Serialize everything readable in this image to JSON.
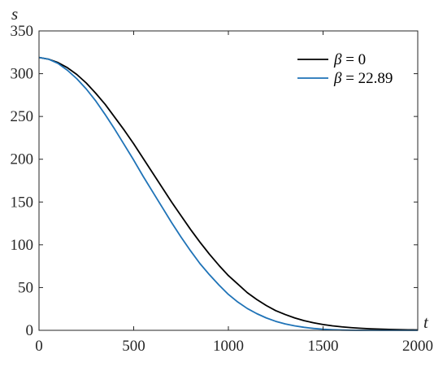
{
  "chart_data": {
    "type": "line",
    "title": "",
    "xlabel": "t",
    "ylabel": "s",
    "xlim": [
      0,
      2000
    ],
    "ylim": [
      0,
      350
    ],
    "xticks": [
      0,
      500,
      1000,
      1500,
      2000
    ],
    "yticks": [
      0,
      50,
      100,
      150,
      200,
      250,
      300,
      350
    ],
    "grid": false,
    "legend_position": "top-right",
    "series": [
      {
        "name": "β = 0",
        "legend_symbol": "β",
        "legend_value": " = 0",
        "color": "#000000",
        "x": [
          0,
          50,
          100,
          150,
          200,
          250,
          300,
          350,
          400,
          450,
          500,
          550,
          600,
          650,
          700,
          750,
          800,
          850,
          900,
          950,
          1000,
          1050,
          1100,
          1150,
          1200,
          1250,
          1300,
          1350,
          1400,
          1450,
          1500,
          1550,
          1600,
          1650,
          1700,
          1750,
          1800,
          1850,
          1900,
          1950,
          2000
        ],
        "y": [
          319,
          317,
          313,
          307,
          299,
          289,
          277,
          264,
          249,
          234,
          218,
          201,
          184,
          167,
          150,
          134,
          118,
          103,
          89,
          76,
          64,
          54,
          44,
          36,
          29,
          23,
          18.5,
          14.5,
          11.3,
          8.8,
          6.8,
          5.2,
          4.0,
          3.1,
          2.4,
          1.8,
          1.4,
          1.1,
          0.8,
          0.6,
          0.5
        ]
      },
      {
        "name": "β = 22.89",
        "legend_symbol": "β",
        "legend_value": " = 22.89",
        "color": "#1f73b7",
        "x": [
          0,
          50,
          100,
          150,
          200,
          250,
          300,
          350,
          400,
          450,
          500,
          550,
          600,
          650,
          700,
          750,
          800,
          850,
          900,
          950,
          1000,
          1050,
          1100,
          1150,
          1200,
          1250,
          1300,
          1350,
          1400,
          1450,
          1500,
          1550,
          1600,
          1650,
          1700,
          1750,
          1800,
          1850,
          1900,
          1950,
          2000
        ],
        "y": [
          319,
          317,
          312,
          304,
          294,
          282,
          268,
          252,
          235,
          217,
          199,
          180,
          162,
          144,
          126,
          109,
          93,
          78,
          65,
          53,
          42,
          33,
          25.5,
          19.5,
          14.5,
          10.5,
          7.5,
          5.2,
          3.5,
          2.2,
          1.3,
          0.7,
          0.3,
          0.1,
          0,
          0,
          0,
          0,
          0,
          0,
          0
        ]
      }
    ]
  }
}
